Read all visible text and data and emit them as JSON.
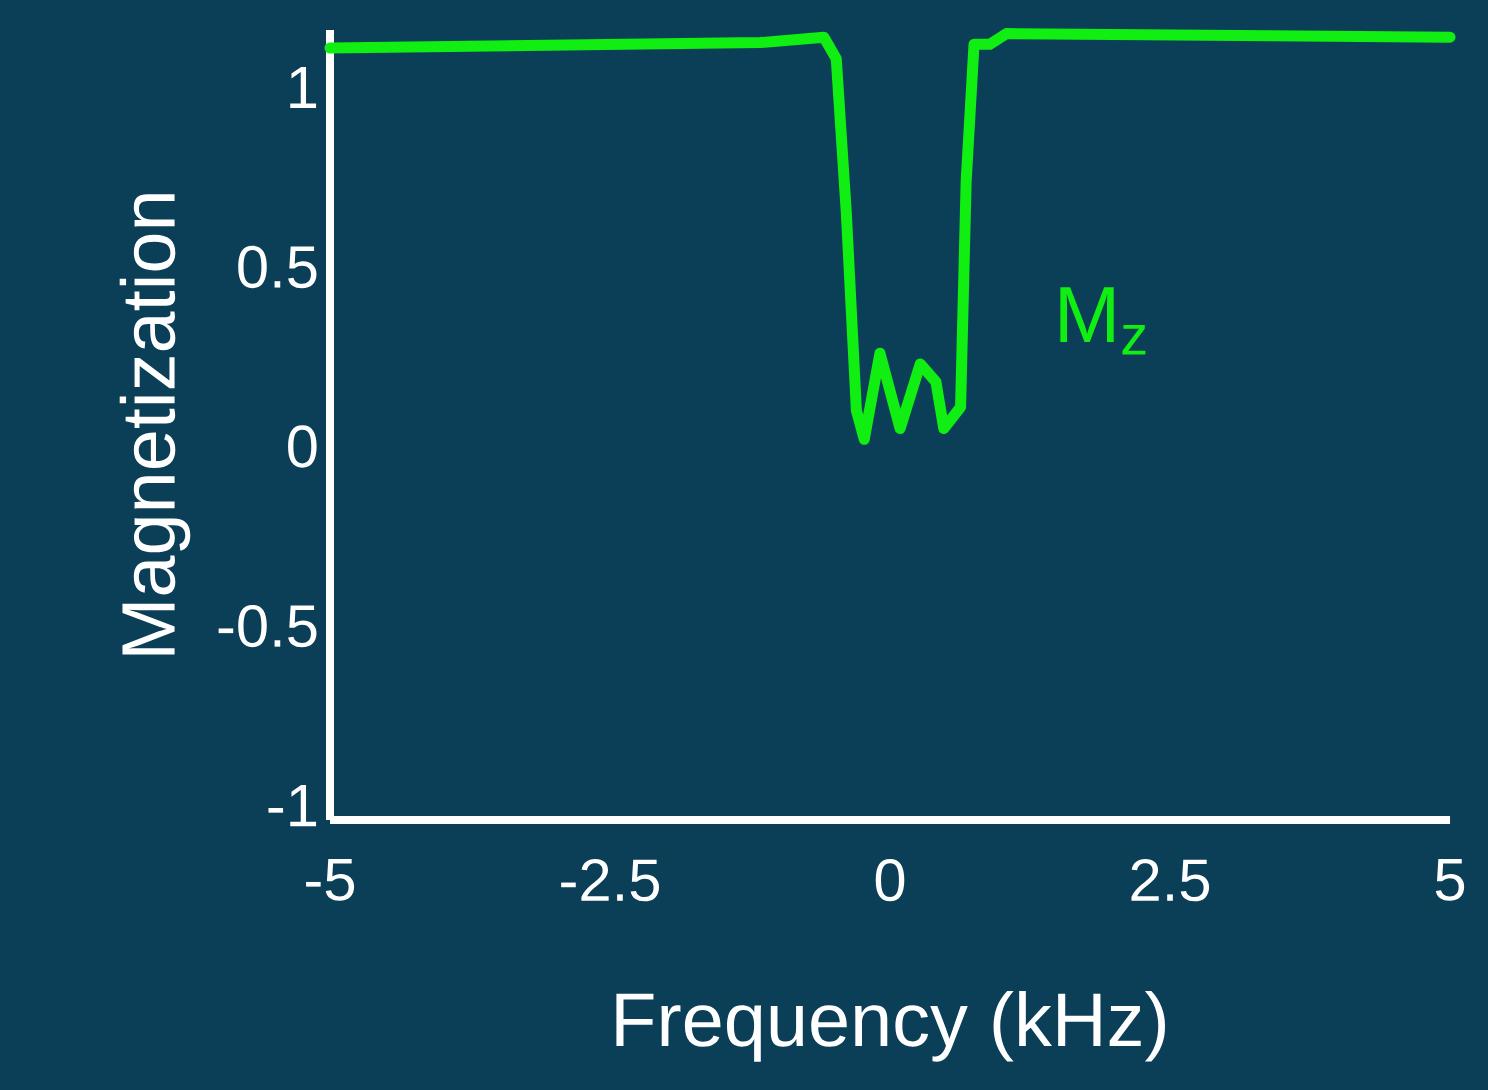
{
  "chart_data": {
    "type": "line",
    "xlabel": "Frequency (kHz)",
    "ylabel": "Magnetization",
    "xlim": [
      -5,
      5
    ],
    "ylim": [
      -1.04,
      1.16
    ],
    "xticks": [
      -5,
      -2.5,
      0,
      2.5,
      5
    ],
    "yticks": [
      -1,
      -0.5,
      0,
      0.5,
      1
    ],
    "grid": false,
    "marker": "none",
    "line_style": "solid",
    "series": [
      {
        "name": "M$_{z}$",
        "color": "#11ee11",
        "x": [
          -5,
          -1.16,
          -0.59,
          -0.48,
          -0.39,
          -0.3,
          -0.23,
          -0.09,
          0.09,
          0.27,
          0.41,
          0.48,
          0.63,
          0.68,
          0.75,
          0.89,
          1.04,
          5
        ],
        "values": [
          1.11,
          1.125,
          1.14,
          1.08,
          0.65,
          0.1,
          0.02,
          0.26,
          0.05,
          0.23,
          0.18,
          0.05,
          0.11,
          0.74,
          1.12,
          1.12,
          1.15,
          1.14
        ]
      }
    ]
  }
}
